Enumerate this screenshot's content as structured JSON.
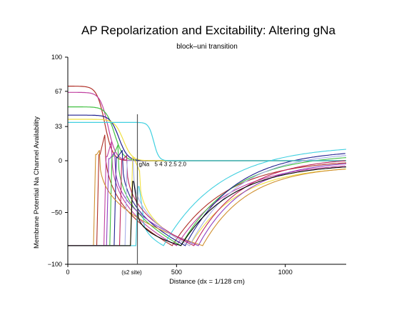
{
  "chart_data": {
    "type": "line",
    "title": "AP Repolarization and Excitability:  Altering gNa",
    "subtitle": "block–uni transition",
    "xlabel": "Distance (dx = 1/128 cm)",
    "ylabel_lower": "Membrane Potential",
    "ylabel_upper": "Na Channel Availability",
    "xlim": [
      0,
      1280
    ],
    "ylim": [
      -100,
      100
    ],
    "x_ticks": [
      {
        "value": 0,
        "label": "0"
      },
      {
        "value": 500,
        "label": "500"
      },
      {
        "value": 1000,
        "label": "1000"
      }
    ],
    "y_ticks": [
      {
        "value": 100,
        "label": "100"
      },
      {
        "value": 67,
        "label": "67"
      },
      {
        "value": 33,
        "label": "33"
      },
      {
        "value": 0,
        "label": "0"
      },
      {
        "value": -50,
        "label": "−50"
      },
      {
        "value": -100,
        "label": "−100"
      }
    ],
    "marker": {
      "x": 320,
      "label": "(s2 site)"
    },
    "gna_annotation": {
      "prefix": "gNa",
      "values": "5 4 3 2.5   2.0"
    },
    "grid": false,
    "legend": "none",
    "series": [
      {
        "color": "#b03028",
        "availability": {
          "plateau": 72,
          "mid": 170,
          "width": 55,
          "edge": 390
        },
        "ap": {
          "front": 145,
          "peak": 6,
          "tail": [
            [
              170,
              25
            ],
            [
              480,
              -82
            ],
            [
              1280,
              -2
            ]
          ]
        }
      },
      {
        "color": "#c040a0",
        "availability": {
          "plateau": 66,
          "mid": 185,
          "width": 55,
          "edge": 400
        },
        "ap": {
          "front": 178,
          "peak": 4,
          "tail": [
            [
              200,
              18
            ],
            [
              500,
              -82
            ],
            [
              1280,
              -5
            ]
          ]
        }
      },
      {
        "color": "#40c040",
        "availability": {
          "plateau": 52,
          "mid": 215,
          "width": 60,
          "edge": 420
        },
        "ap": {
          "front": 205,
          "peak": 4,
          "tail": [
            [
              230,
              15
            ],
            [
              520,
              -82
            ],
            [
              1280,
              3
            ]
          ]
        }
      },
      {
        "color": "#202090",
        "availability": {
          "plateau": 44,
          "mid": 235,
          "width": 60,
          "edge": 430
        },
        "ap": {
          "front": 225,
          "peak": 3,
          "tail": [
            [
              250,
              10
            ],
            [
              540,
              -82
            ],
            [
              1280,
              7
            ]
          ]
        }
      },
      {
        "color": "#f0e040",
        "availability": {
          "plateau": 40,
          "mid": 255,
          "width": 60,
          "edge": 445
        },
        "ap": {
          "front": 300,
          "peak": 3,
          "tail": [
            [
              330,
              -10
            ],
            [
              560,
              -82
            ],
            [
              1280,
              -8
            ]
          ]
        }
      },
      {
        "color": "#40d0e0",
        "availability": {
          "plateau": 37,
          "mid": 395,
          "width": 35,
          "edge": 520
        },
        "ap": {
          "front": 325,
          "peak": -25,
          "tail": [
            [
              345,
              -50
            ],
            [
              440,
              -82
            ],
            [
              1280,
              11
            ]
          ]
        }
      },
      {
        "color": "#d09030",
        "availability": null,
        "ap": {
          "front": 130,
          "peak": 6,
          "tail": [
            [
              145,
              10
            ],
            [
              620,
              -82
            ],
            [
              1280,
              -8
            ]
          ]
        }
      },
      {
        "color": "#9040c0",
        "availability": null,
        "ap": {
          "front": 190,
          "peak": 2,
          "tail": [
            [
              215,
              8
            ],
            [
              600,
              -82
            ],
            [
              1280,
              -3
            ]
          ]
        }
      },
      {
        "color": "#c02860",
        "availability": null,
        "ap": {
          "front": 250,
          "peak": 1,
          "tail": [
            [
              270,
              5
            ],
            [
              580,
              -82
            ],
            [
              1280,
              0
            ]
          ]
        }
      },
      {
        "color": "#a8b0e8",
        "availability": null,
        "ap": {
          "front": 275,
          "peak": 0,
          "tail": [
            [
              300,
              0
            ],
            [
              560,
              -82
            ],
            [
              1280,
              5
            ]
          ]
        }
      },
      {
        "color": "#000000",
        "availability": null,
        "ap": {
          "front": 300,
          "peak": -20,
          "tail": [
            [
              320,
              -45
            ],
            [
              520,
              -82
            ],
            [
              1280,
              -6
            ]
          ]
        }
      }
    ]
  }
}
